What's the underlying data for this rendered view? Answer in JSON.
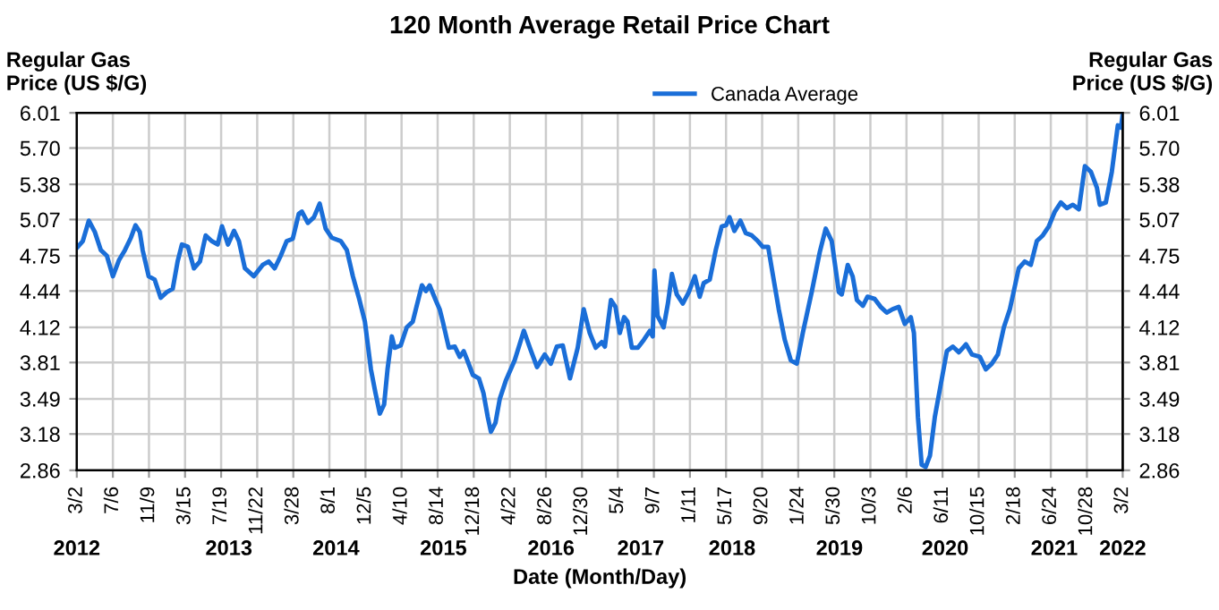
{
  "chart_data": {
    "type": "line",
    "title": "120 Month Average Retail Price Chart",
    "xlabel": "Date (Month/Day)",
    "ylabel": "Regular Gas\nPrice (US $/G)",
    "y2label": "Regular Gas\nPrice (US $/G)",
    "legend": "top",
    "grid": true,
    "marker": "none",
    "line_style": "solid",
    "xlim": [
      "2012-03-02",
      "2022-03-02"
    ],
    "xticks": [
      {
        "value": "2012-03-02",
        "label": "3/2"
      },
      {
        "value": "2012-07-06",
        "label": "7/6"
      },
      {
        "value": "2012-11-09",
        "label": "11/9"
      },
      {
        "value": "2013-03-15",
        "label": "3/15"
      },
      {
        "value": "2013-07-19",
        "label": "7/19"
      },
      {
        "value": "2013-11-22",
        "label": "11/22"
      },
      {
        "value": "2014-03-28",
        "label": "3/28"
      },
      {
        "value": "2014-08-01",
        "label": "8/1"
      },
      {
        "value": "2014-12-05",
        "label": "12/5"
      },
      {
        "value": "2015-04-10",
        "label": "4/10"
      },
      {
        "value": "2015-08-14",
        "label": "8/14"
      },
      {
        "value": "2015-12-18",
        "label": "12/18"
      },
      {
        "value": "2016-04-22",
        "label": "4/22"
      },
      {
        "value": "2016-08-26",
        "label": "8/26"
      },
      {
        "value": "2016-12-30",
        "label": "12/30"
      },
      {
        "value": "2017-05-04",
        "label": "5/4"
      },
      {
        "value": "2017-09-07",
        "label": "9/7"
      },
      {
        "value": "2018-01-11",
        "label": "1/11"
      },
      {
        "value": "2018-05-17",
        "label": "5/17"
      },
      {
        "value": "2018-09-20",
        "label": "9/20"
      },
      {
        "value": "2019-01-24",
        "label": "1/24"
      },
      {
        "value": "2019-05-30",
        "label": "5/30"
      },
      {
        "value": "2019-10-03",
        "label": "10/3"
      },
      {
        "value": "2020-02-06",
        "label": "2/6"
      },
      {
        "value": "2020-06-11",
        "label": "6/11"
      },
      {
        "value": "2020-10-15",
        "label": "10/15"
      },
      {
        "value": "2021-02-18",
        "label": "2/18"
      },
      {
        "value": "2021-06-24",
        "label": "6/24"
      },
      {
        "value": "2021-10-28",
        "label": "10/28"
      },
      {
        "value": "2022-03-02",
        "label": "3/2"
      }
    ],
    "x2lim": [
      "2012-03-02",
      "2022-03-02"
    ],
    "x2ticks": [
      {
        "value": "2012-03-02",
        "label": "2012"
      },
      {
        "value": "2013-08-15",
        "label": "2013"
      },
      {
        "value": "2014-08-24",
        "label": "2014"
      },
      {
        "value": "2015-09-03",
        "label": "2015"
      },
      {
        "value": "2016-09-13",
        "label": "2016"
      },
      {
        "value": "2017-07-23",
        "label": "2017"
      },
      {
        "value": "2018-06-07",
        "label": "2018"
      },
      {
        "value": "2019-06-17",
        "label": "2019"
      },
      {
        "value": "2020-06-20",
        "label": "2020"
      },
      {
        "value": "2021-07-06",
        "label": "2021"
      },
      {
        "value": "2022-03-02",
        "label": "2022"
      }
    ],
    "ylim": [
      2.86,
      6.01
    ],
    "yticks": [
      2.86,
      3.18,
      3.49,
      3.81,
      4.12,
      4.44,
      4.75,
      5.07,
      5.38,
      {
        "value": 5.7,
        "label": "5.70"
      },
      6.01
    ],
    "y2lim": [
      2.86,
      6.01
    ],
    "y2ticks": [
      2.86,
      3.18,
      3.49,
      3.81,
      4.12,
      4.44,
      4.75,
      5.07,
      5.38,
      {
        "value": 5.7,
        "label": "5.70"
      },
      6.01
    ],
    "x": [
      "2012-03-02",
      "2012-03-23",
      "2012-04-13",
      "2012-05-04",
      "2012-05-25",
      "2012-06-15",
      "2012-07-06",
      "2012-07-27",
      "2012-08-17",
      "2012-09-07",
      "2012-09-23",
      "2012-10-08",
      "2012-10-18",
      "2012-11-08",
      "2012-11-29",
      "2012-12-20",
      "2013-01-10",
      "2013-01-31",
      "2013-02-17",
      "2013-03-04",
      "2013-03-25",
      "2013-04-15",
      "2013-05-06",
      "2013-05-26",
      "2013-06-16",
      "2013-07-07",
      "2013-07-22",
      "2013-08-12",
      "2013-09-02",
      "2013-09-19",
      "2013-10-10",
      "2013-11-10",
      "2013-12-11",
      "2014-01-01",
      "2014-01-22",
      "2014-02-12",
      "2014-03-05",
      "2014-03-26",
      "2014-04-16",
      "2014-04-27",
      "2014-05-18",
      "2014-06-08",
      "2014-06-28",
      "2014-07-19",
      "2014-08-09",
      "2014-09-10",
      "2014-10-01",
      "2014-10-22",
      "2014-11-12",
      "2014-12-03",
      "2014-12-24",
      "2015-01-09",
      "2015-01-24",
      "2015-02-08",
      "2015-02-20",
      "2015-03-07",
      "2015-03-17",
      "2015-04-07",
      "2015-04-28",
      "2015-05-19",
      "2015-06-09",
      "2015-06-20",
      "2015-07-04",
      "2015-07-17",
      "2015-08-07",
      "2015-08-21",
      "2015-09-01",
      "2015-09-22",
      "2015-10-13",
      "2015-10-30",
      "2015-11-13",
      "2015-11-24",
      "2015-12-15",
      "2016-01-05",
      "2016-01-21",
      "2016-02-05",
      "2016-02-16",
      "2016-03-03",
      "2016-03-18",
      "2016-04-08",
      "2016-05-09",
      "2016-06-10",
      "2016-07-01",
      "2016-07-26",
      "2016-08-22",
      "2016-09-12",
      "2016-10-03",
      "2016-10-24",
      "2016-11-18",
      "2016-12-15",
      "2017-01-05",
      "2017-01-26",
      "2017-02-16",
      "2017-03-09",
      "2017-03-20",
      "2017-04-10",
      "2017-04-26",
      "2017-05-11",
      "2017-05-26",
      "2017-06-07",
      "2017-06-22",
      "2017-07-13",
      "2017-08-03",
      "2017-08-24",
      "2017-09-03",
      "2017-09-09",
      "2017-09-20",
      "2017-10-11",
      "2017-10-26",
      "2017-11-09",
      "2017-11-26",
      "2017-12-17",
      "2018-01-07",
      "2018-01-28",
      "2018-02-14",
      "2018-02-28",
      "2018-03-21",
      "2018-04-11",
      "2018-05-02",
      "2018-05-17",
      "2018-05-29",
      "2018-06-15",
      "2018-07-06",
      "2018-07-25",
      "2018-08-15",
      "2018-09-05",
      "2018-09-22",
      "2018-10-11",
      "2018-10-27",
      "2018-11-17",
      "2018-12-08",
      "2018-12-29",
      "2019-01-19",
      "2019-02-09",
      "2019-03-12",
      "2019-04-09",
      "2019-04-30",
      "2019-05-21",
      "2019-06-15",
      "2019-06-25",
      "2019-07-16",
      "2019-08-02",
      "2019-08-17",
      "2019-09-07",
      "2019-09-23",
      "2019-10-18",
      "2019-11-08",
      "2019-11-29",
      "2019-12-20",
      "2020-01-10",
      "2020-01-31",
      "2020-02-21",
      "2020-03-03",
      "2020-03-17",
      "2020-03-30",
      "2020-04-13",
      "2020-04-28",
      "2020-05-15",
      "2020-06-05",
      "2020-06-26",
      "2020-07-17",
      "2020-08-07",
      "2020-09-01",
      "2020-09-22",
      "2020-10-19",
      "2020-11-09",
      "2020-11-30",
      "2020-12-21",
      "2021-01-11",
      "2021-02-01",
      "2021-03-04",
      "2021-03-25",
      "2021-04-15",
      "2021-05-06",
      "2021-05-27",
      "2021-06-17",
      "2021-07-08",
      "2021-07-29",
      "2021-08-19",
      "2021-09-09",
      "2021-09-30",
      "2021-10-21",
      "2021-11-11",
      "2021-12-02",
      "2021-12-12",
      "2022-01-02",
      "2022-01-23",
      "2022-02-13",
      "2022-02-24",
      "2022-03-02"
    ],
    "series": [
      {
        "name": "Canada Average",
        "color": "#1a6ed8",
        "values": [
          4.82,
          4.88,
          5.06,
          4.96,
          4.8,
          4.75,
          4.57,
          4.71,
          4.8,
          4.91,
          5.02,
          4.96,
          4.8,
          4.57,
          4.54,
          4.38,
          4.43,
          4.46,
          4.7,
          4.85,
          4.83,
          4.64,
          4.7,
          4.93,
          4.88,
          4.85,
          5.01,
          4.85,
          4.97,
          4.88,
          4.64,
          4.57,
          4.67,
          4.7,
          4.64,
          4.75,
          4.88,
          4.9,
          5.12,
          5.14,
          5.04,
          5.09,
          5.21,
          4.99,
          4.91,
          4.88,
          4.8,
          4.57,
          4.38,
          4.17,
          3.75,
          3.54,
          3.36,
          3.44,
          3.75,
          4.04,
          3.94,
          3.96,
          4.12,
          4.17,
          4.38,
          4.49,
          4.44,
          4.49,
          4.36,
          4.28,
          4.17,
          3.94,
          3.95,
          3.86,
          3.91,
          3.84,
          3.7,
          3.67,
          3.54,
          3.33,
          3.2,
          3.28,
          3.49,
          3.65,
          3.83,
          4.09,
          3.94,
          3.77,
          3.88,
          3.8,
          3.95,
          3.96,
          3.67,
          3.94,
          4.28,
          4.07,
          3.94,
          3.99,
          3.95,
          4.36,
          4.3,
          4.07,
          4.21,
          4.17,
          3.94,
          3.94,
          4.01,
          4.09,
          4.04,
          4.62,
          4.22,
          4.12,
          4.33,
          4.59,
          4.41,
          4.33,
          4.43,
          4.57,
          4.39,
          4.51,
          4.54,
          4.8,
          5.01,
          5.02,
          5.09,
          4.97,
          5.06,
          4.95,
          4.93,
          4.88,
          4.83,
          4.83,
          4.59,
          4.28,
          4.01,
          3.83,
          3.8,
          4.07,
          4.43,
          4.78,
          4.99,
          4.88,
          4.43,
          4.41,
          4.67,
          4.57,
          4.36,
          4.31,
          4.39,
          4.37,
          4.3,
          4.25,
          4.28,
          4.3,
          4.15,
          4.21,
          4.07,
          3.33,
          2.91,
          2.89,
          2.99,
          3.33,
          3.62,
          3.91,
          3.95,
          3.9,
          3.97,
          3.88,
          3.86,
          3.75,
          3.8,
          3.88,
          4.12,
          4.28,
          4.64,
          4.7,
          4.67,
          4.88,
          4.93,
          5.01,
          5.14,
          5.22,
          5.17,
          5.2,
          5.16,
          5.54,
          5.49,
          5.35,
          5.2,
          5.22,
          5.49,
          5.9,
          5.88,
          6.0
        ]
      }
    ]
  }
}
